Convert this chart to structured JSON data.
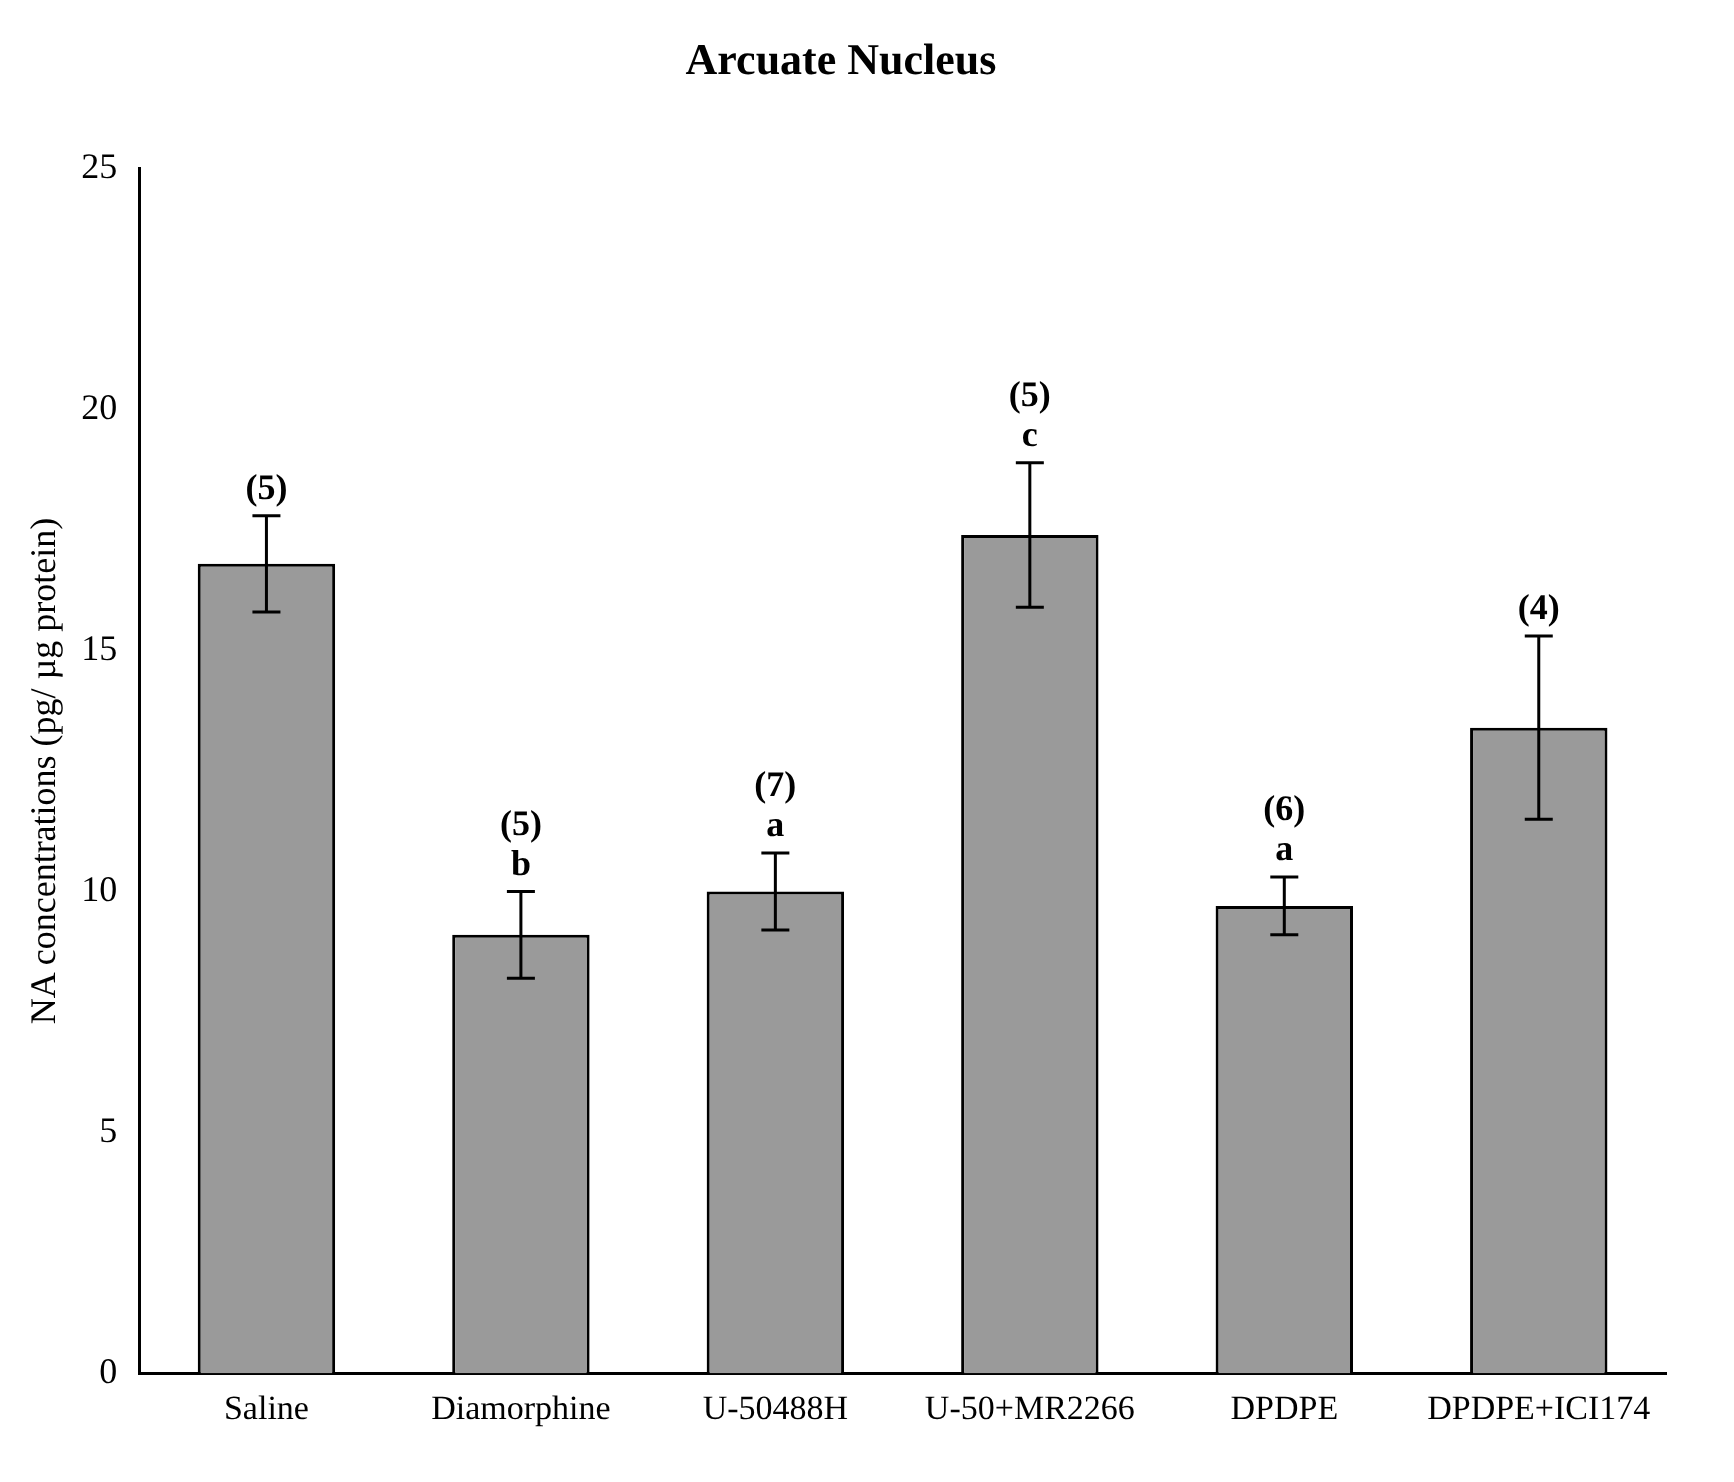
{
  "chart_data": {
    "type": "bar",
    "title": "Arcuate Nucleus",
    "ylabel": "NA concentrations (pg/ µg protein)",
    "categories": [
      "Saline",
      "Diamorphine",
      "U-50488H",
      "U-50+MR2266",
      "DPDPE",
      "DPDPE+ICI174"
    ],
    "values": [
      16.8,
      9.1,
      10.0,
      17.4,
      9.7,
      13.4
    ],
    "errors": [
      1.0,
      0.9,
      0.8,
      1.5,
      0.6,
      1.9
    ],
    "color": "#9a9a9a",
    "ylim": [
      0,
      25
    ],
    "yticks": [
      0,
      5,
      10,
      15,
      20,
      25
    ],
    "grid": false,
    "legend": false,
    "annotations": [
      {
        "text": "(5)",
        "x": "Saline",
        "y": 17.8
      },
      {
        "text": "b",
        "x": "Diamorphine",
        "y": 10.0
      },
      {
        "text": "(5)",
        "x": "Diamorphine",
        "y": 10.0
      },
      {
        "text": "a",
        "x": "U-50488H",
        "y": 10.8
      },
      {
        "text": "(7)",
        "x": "U-50488H",
        "y": 10.8
      },
      {
        "text": "c",
        "x": "U-50+MR2266",
        "y": 18.9
      },
      {
        "text": "(5)",
        "x": "U-50+MR2266",
        "y": 18.9
      },
      {
        "text": "a",
        "x": "DPDPE",
        "y": 10.3
      },
      {
        "text": "(6)",
        "x": "DPDPE",
        "y": 10.3
      },
      {
        "text": "(4)",
        "x": "DPDPE+ICI174",
        "y": 15.3
      }
    ]
  }
}
